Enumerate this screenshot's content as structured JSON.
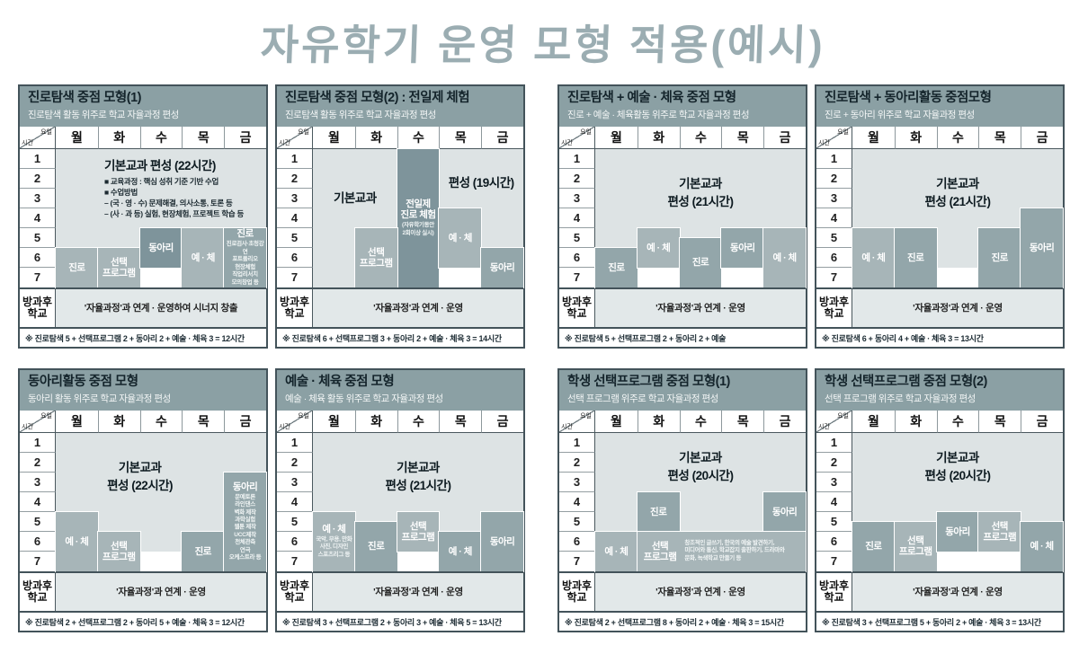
{
  "page": {
    "title": "자유학기 운영 모형 적용(예시)",
    "title_color": "#9badb2",
    "background": "#ffffff"
  },
  "colors": {
    "panel_header_bg": "#8ba0a4",
    "panel_title_ink": "#14242b",
    "panel_subtitle_ink": "#f3f6f6",
    "base_light": "#dde3e4",
    "block_mid": "#a7b5b8",
    "block_dark": "#93a6aa",
    "block_darker": "#7e949b",
    "afterschool_bg": "#e2e8e9",
    "border": "#43535a"
  },
  "table": {
    "corner_top": "요일",
    "corner_bottom": "시간",
    "days": [
      "월",
      "화",
      "수",
      "목",
      "금"
    ],
    "periods": [
      "1",
      "2",
      "3",
      "4",
      "5",
      "6",
      "7"
    ],
    "afterschool_label": "방과후\n학교"
  },
  "panels": [
    {
      "title": "진로탐색 중점 모형(1)",
      "subtitle": "진로탐색 활동 위주로 학교 자율과정 편성",
      "base": [
        {
          "c": 1,
          "h2": 10
        },
        {
          "c": 2,
          "h2": 10
        },
        {
          "c": 3,
          "h2": 8
        },
        {
          "c": 4,
          "h2": 8
        },
        {
          "c": 5,
          "h2": 8
        }
      ],
      "white": [
        {
          "c": 3,
          "h1": 13,
          "h2": 14
        }
      ],
      "base_texts": [
        {
          "c1": 1,
          "c2": 5,
          "h1": 1,
          "h2": 8,
          "align": "left",
          "big": "기본교과 편성 (22시간)",
          "lines": "■ 교육과정 : 핵심 성취 기준 기반 수업\n■ 수업방법\n– (국 · 영 · 수) 문제해결, 의사소통, 토론 등\n– (사 · 과 등) 실험, 현장체험, 프로젝트 학습 등"
        }
      ],
      "blocks": [
        {
          "c": 1,
          "h1": 11,
          "h2": 14,
          "tone": "mid",
          "label": "진로"
        },
        {
          "c": 2,
          "h1": 11,
          "h2": 14,
          "tone": "mid",
          "label": "선택\n프로그램"
        },
        {
          "c": 3,
          "h1": 9,
          "h2": 12,
          "tone": "darker",
          "label": "동아리"
        },
        {
          "c": 4,
          "h1": 9,
          "h2": 14,
          "tone": "mid",
          "label": "예 · 체"
        },
        {
          "c": 5,
          "h1": 9,
          "h2": 14,
          "tone": "dark",
          "label": "진로",
          "sub": "진로검사·초청강연\n포트폴리오\n현장체험\n직업리서치\n모의창업 등"
        }
      ],
      "afterschool": "'자율과정'과 연계 · 운영하여 시너지 창출",
      "note": "※ 진로탐색 5 + 선택프로그램 2 + 동아리 2 + 예술 · 체육 3 = 12시간"
    },
    {
      "title": "진로탐색 중점 모형(2) : 전일제 체험",
      "subtitle": "진로탐색 활동 위주로 학교 자율과정 편성",
      "base": [
        {
          "c": 1,
          "h2": 14
        },
        {
          "c": 2,
          "h2": 8
        },
        {
          "c": 4,
          "h2": 6
        },
        {
          "c": 5,
          "h2": 10
        }
      ],
      "white": [
        {
          "c": 4,
          "h1": 13,
          "h2": 14
        }
      ],
      "base_texts": [
        {
          "c1": 1,
          "c2": 2,
          "h1": 3,
          "h2": 8,
          "align": "center",
          "big": "기본교과"
        },
        {
          "c1": 4,
          "c2": 5,
          "h1": 2,
          "h2": 6,
          "align": "center",
          "big": "편성 (19시간)"
        }
      ],
      "blocks": [
        {
          "c": 3,
          "h1": 1,
          "h2": 14,
          "tone": "darker",
          "label": "전일제\n진로 체험",
          "sub": "(자유학기동안\n2회이상 실시)"
        },
        {
          "c": 2,
          "h1": 9,
          "h2": 14,
          "tone": "mid",
          "label": "선택\n프로그램"
        },
        {
          "c": 4,
          "h1": 7,
          "h2": 12,
          "tone": "mid",
          "label": "예 · 체"
        },
        {
          "c": 5,
          "h1": 11,
          "h2": 14,
          "tone": "dark",
          "label": "동아리"
        }
      ],
      "afterschool": "'자율과정'과 연계 · 운영",
      "note": "※ 진로탐색 6 + 선택프로그램 3 + 동아리 2 + 예술 · 체육 3 = 14시간"
    },
    {
      "title": "진로탐색 + 예술 · 체육 중점 모형",
      "subtitle": "진로 + 예술 · 체육활동 위주로 학교 자율과정 편성",
      "base": [
        {
          "c": 1,
          "h2": 10
        },
        {
          "c": 2,
          "h2": 8
        },
        {
          "c": 3,
          "h2": 9
        },
        {
          "c": 4,
          "h2": 8
        },
        {
          "c": 5,
          "h2": 8
        }
      ],
      "white": [
        {
          "c": 2,
          "h1": 13,
          "h2": 14
        },
        {
          "c": 4,
          "h1": 13,
          "h2": 14
        }
      ],
      "base_texts": [
        {
          "c1": 1,
          "c2": 5,
          "h1": 2,
          "h2": 8,
          "align": "center",
          "big": "기본교과\n편성 (21시간)"
        }
      ],
      "blocks": [
        {
          "c": 1,
          "h1": 11,
          "h2": 14,
          "tone": "dark",
          "label": "진로"
        },
        {
          "c": 2,
          "h1": 9,
          "h2": 12,
          "tone": "mid",
          "label": "예 · 체"
        },
        {
          "c": 3,
          "h1": 10,
          "h2": 14,
          "tone": "dark",
          "label": "진로"
        },
        {
          "c": 4,
          "h1": 9,
          "h2": 12,
          "tone": "dark",
          "label": "동아리"
        },
        {
          "c": 5,
          "h1": 9,
          "h2": 14,
          "tone": "mid",
          "label": "예 · 체"
        }
      ],
      "afterschool": "'자율과정'과 연계 · 운영",
      "note": "※ 진로탐색 5 + 선택프로그램 2 + 동아리 2 + 예술"
    },
    {
      "title": "진로탐색 + 동아리활동 중점모형",
      "subtitle": "진로 + 동아리 위주로 학교 자율과정 편성",
      "base": [
        {
          "c": 1,
          "h2": 8
        },
        {
          "c": 2,
          "h2": 8
        },
        {
          "c": 3,
          "h2": 12
        },
        {
          "c": 4,
          "h2": 8
        },
        {
          "c": 5,
          "h2": 6
        }
      ],
      "white": [
        {
          "c": 3,
          "h1": 13,
          "h2": 14
        }
      ],
      "base_texts": [
        {
          "c1": 1,
          "c2": 5,
          "h1": 2,
          "h2": 8,
          "align": "center",
          "big": "기본교과\n편성 (21시간)"
        }
      ],
      "blocks": [
        {
          "c": 1,
          "h1": 9,
          "h2": 14,
          "tone": "mid",
          "label": "예 · 체"
        },
        {
          "c": 2,
          "h1": 9,
          "h2": 14,
          "tone": "dark",
          "label": "진로"
        },
        {
          "c": 4,
          "h1": 9,
          "h2": 14,
          "tone": "dark",
          "label": "진로"
        },
        {
          "c": 5,
          "h1": 7,
          "h2": 14,
          "tone": "dark",
          "label": "동아리"
        }
      ],
      "afterschool": "'자율과정'과 연계 · 운영",
      "note": "※ 진로탐색 6 + 동아리 4 + 예술 · 체육 3 = 13시간"
    },
    {
      "title": "동아리활동 중점 모형",
      "subtitle": "동아리 활동 위주로 학교 자율과정 편성",
      "base": [
        {
          "c": 1,
          "h2": 8
        },
        {
          "c": 2,
          "h2": 10
        },
        {
          "c": 3,
          "h2": 12
        },
        {
          "c": 4,
          "h2": 10
        },
        {
          "c": 5,
          "h2": 4
        }
      ],
      "white": [
        {
          "c": 3,
          "h1": 13,
          "h2": 14
        }
      ],
      "base_texts": [
        {
          "c1": 1,
          "c2": 4,
          "h1": 2,
          "h2": 8,
          "align": "center",
          "big": "기본교과\n편성 (22시간)"
        }
      ],
      "blocks": [
        {
          "c": 1,
          "h1": 9,
          "h2": 14,
          "tone": "mid",
          "label": "예 · 체"
        },
        {
          "c": 2,
          "h1": 11,
          "h2": 14,
          "tone": "mid",
          "label": "선택\n프로그램"
        },
        {
          "c": 4,
          "h1": 11,
          "h2": 14,
          "tone": "dark",
          "label": "진로"
        },
        {
          "c": 5,
          "h1": 5,
          "h2": 14,
          "tone": "dark",
          "label": "동아리",
          "sub": "문예토론\n라인댄스\n벽화 제작\n과학실험\n웹툰 제작\nUCC제작\n천체관측\n연극\n오케스트라 등"
        }
      ],
      "afterschool": "'자율과정'과 연계 · 운영",
      "note": "※ 진로탐색 2 + 선택프로그램 2 + 동아리 5 + 예술 · 체육 3 = 12시간"
    },
    {
      "title": "예술 · 체육 중점 모형",
      "subtitle": "예술 · 체육 활동 위주로 학교 자율과정 편성",
      "base": [
        {
          "c": 1,
          "h2": 8
        },
        {
          "c": 2,
          "h2": 9
        },
        {
          "c": 3,
          "h2": 8
        },
        {
          "c": 4,
          "h2": 10
        },
        {
          "c": 5,
          "h2": 8
        }
      ],
      "white": [
        {
          "c": 3,
          "h1": 13,
          "h2": 14
        }
      ],
      "base_texts": [
        {
          "c1": 1,
          "c2": 5,
          "h1": 2,
          "h2": 8,
          "align": "center",
          "big": "기본교과\n편성 (21시간)"
        }
      ],
      "blocks": [
        {
          "c": 1,
          "h1": 9,
          "h2": 14,
          "tone": "mid",
          "label": "예 · 체",
          "sub": "국악, 무용, 만화\n사진, 디자인\n스포츠리그 등"
        },
        {
          "c": 2,
          "h1": 10,
          "h2": 14,
          "tone": "dark",
          "label": "진로"
        },
        {
          "c": 3,
          "h1": 9,
          "h2": 12,
          "tone": "mid",
          "label": "선택\n프로그램"
        },
        {
          "c": 4,
          "h1": 11,
          "h2": 14,
          "tone": "dark",
          "label": "예 · 체"
        },
        {
          "c": 5,
          "h1": 9,
          "h2": 14,
          "tone": "dark",
          "label": "동아리"
        }
      ],
      "afterschool": "'자율과정'과 연계 · 운영",
      "note": "※ 진로탐색 3 + 선택프로그램 2 + 동아리 3 + 예술 · 체육 5 = 13시간"
    },
    {
      "title": "학생 선택프로그램 중점 모형(1)",
      "subtitle": "선택 프로그램 위주로 학교 자율과정 편성",
      "base": [
        {
          "c": 1,
          "h2": 10
        },
        {
          "c": 2,
          "h2": 6
        },
        {
          "c": 3,
          "h2": 10
        },
        {
          "c": 4,
          "h2": 10
        },
        {
          "c": 5,
          "h2": 6
        }
      ],
      "white": [],
      "base_texts": [
        {
          "c1": 1,
          "c2": 5,
          "h1": 2,
          "h2": 6,
          "align": "center",
          "big": "기본교과\n편성 (20시간)"
        }
      ],
      "blocks": [
        {
          "c": 1,
          "h1": 11,
          "h2": 14,
          "tone": "mid",
          "label": "예 · 체"
        },
        {
          "c": 2,
          "h1": 7,
          "h2": 10,
          "tone": "dark",
          "label": "진로"
        },
        {
          "c": 5,
          "h1": 7,
          "h2": 10,
          "tone": "dark",
          "label": "동아리"
        },
        {
          "c": 2,
          "c2": 5,
          "h1": 11,
          "h2": 14,
          "tone": "mid",
          "layout": "row",
          "label": "선택\n프로그램",
          "sub": "창조적인 글쓰기, 한국의 예술 발견하기,\n미디어와 통신, 학교잡지 출판하기, 드라마와\n문화, 녹색학교 만들기 등"
        }
      ],
      "afterschool": "'자율과정'과 연계 · 운영",
      "note": "※ 진로탐색 2 + 선택프로그램 8 + 동아리 2 + 예술 · 체육 3 = 15시간"
    },
    {
      "title": "학생 선택프로그램 중점 모형(2)",
      "subtitle": "선택 프로그램 위주로 학교 자율과정 편성",
      "base": [
        {
          "c": 1,
          "h2": 9
        },
        {
          "c": 2,
          "h2": 9
        },
        {
          "c": 3,
          "h2": 8
        },
        {
          "c": 4,
          "h2": 8
        },
        {
          "c": 5,
          "h2": 9
        }
      ],
      "white": [
        {
          "c": 3,
          "h1": 13,
          "h2": 14
        },
        {
          "c": 4,
          "h1": 13,
          "h2": 14
        }
      ],
      "base_texts": [
        {
          "c1": 1,
          "c2": 5,
          "h1": 2,
          "h2": 6,
          "align": "center",
          "big": "기본교과\n편성 (20시간)"
        }
      ],
      "blocks": [
        {
          "c": 1,
          "h1": 10,
          "h2": 14,
          "tone": "dark",
          "label": "진로"
        },
        {
          "c": 2,
          "h1": 10,
          "h2": 14,
          "tone": "mid",
          "label": "선택\n프로그램"
        },
        {
          "c": 3,
          "h1": 9,
          "h2": 12,
          "tone": "dark",
          "label": "동아리"
        },
        {
          "c": 4,
          "h1": 9,
          "h2": 12,
          "tone": "mid",
          "label": "선택\n프로그램"
        },
        {
          "c": 5,
          "h1": 10,
          "h2": 14,
          "tone": "dark",
          "label": "예 · 체"
        }
      ],
      "afterschool": "'자율과정'과 연계 · 운영",
      "note": "※ 진로탐색 3 + 선택프로그램 5 + 동아리 2 + 예술 · 체육 3 = 13시간"
    }
  ]
}
